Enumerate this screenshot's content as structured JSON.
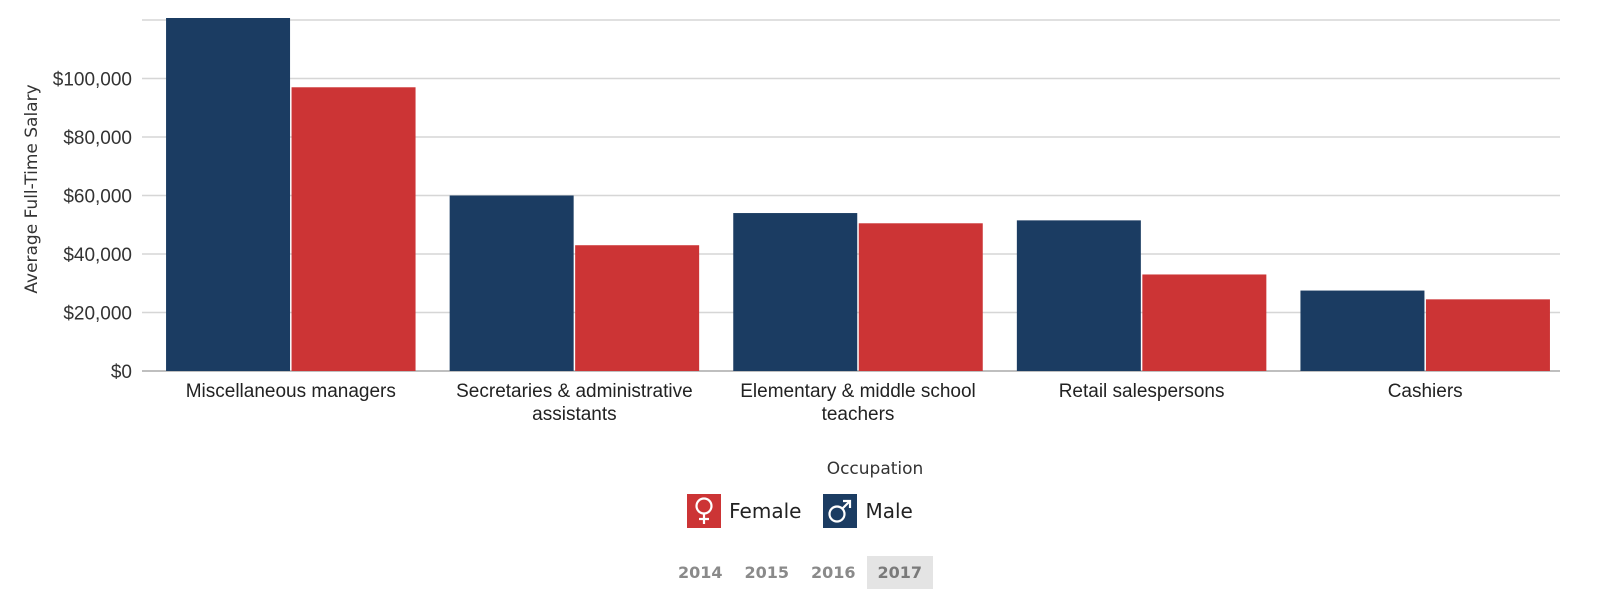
{
  "chart_data": {
    "type": "bar",
    "categories": [
      [
        "Miscellaneous managers"
      ],
      [
        "Secretaries & administrative",
        "assistants"
      ],
      [
        "Elementary & middle school",
        "teachers"
      ],
      [
        "Retail salespersons"
      ],
      [
        "Cashiers"
      ]
    ],
    "series": [
      {
        "name": "Male",
        "color": "#1b3c62",
        "values": [
          121000,
          60000,
          54000,
          51500,
          27500
        ]
      },
      {
        "name": "Female",
        "color": "#cc3435",
        "values": [
          97000,
          43000,
          50500,
          33000,
          24500
        ]
      }
    ],
    "yticks": [
      {
        "value": 0,
        "label": "$0"
      },
      {
        "value": 20000,
        "label": "$20,000"
      },
      {
        "value": 40000,
        "label": "$40,000"
      },
      {
        "value": 60000,
        "label": "$60,000"
      },
      {
        "value": 80000,
        "label": "$80,000"
      },
      {
        "value": 100000,
        "label": "$100,000"
      }
    ],
    "ylim": [
      0,
      120000
    ],
    "ylabel": "Average Full-Time Salary",
    "xlabel": "Occupation",
    "grid": true,
    "legend_placement": "bottom-center"
  },
  "legend": [
    {
      "label": "Female",
      "color": "#cc3435",
      "icon": "female-symbol-icon"
    },
    {
      "label": "Male",
      "color": "#1b3c62",
      "icon": "male-symbol-icon"
    }
  ],
  "years": [
    "2014",
    "2015",
    "2016",
    "2017"
  ],
  "selected_year": "2017"
}
